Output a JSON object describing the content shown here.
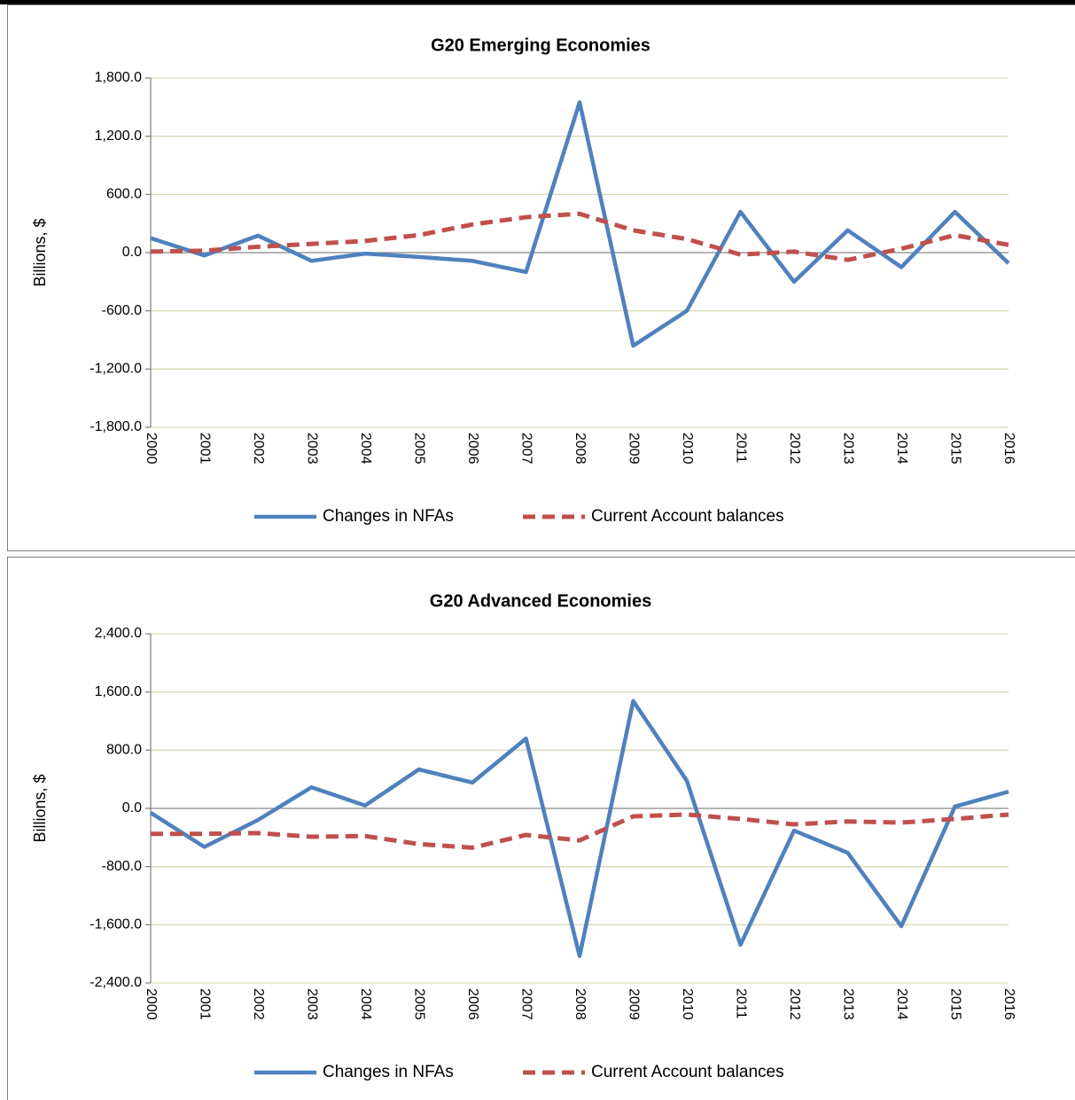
{
  "chart_data": [
    {
      "type": "line",
      "title": "G20 Emerging Economies",
      "y_label": "Billions, $",
      "categories": [
        "2000",
        "2001",
        "2002",
        "2003",
        "2004",
        "2005",
        "2006",
        "2007",
        "2008",
        "2009",
        "2010",
        "2011",
        "2012",
        "2013",
        "2014",
        "2015",
        "2016"
      ],
      "series": [
        {
          "name": "Changes in NFAs",
          "color": "#4f81bd",
          "dash": "solid",
          "values": [
            150,
            -30,
            175,
            -85,
            -10,
            -45,
            -85,
            -200,
            1550,
            -960,
            -600,
            420,
            -300,
            230,
            -150,
            420,
            -110
          ]
        },
        {
          "name": "Current Account balances",
          "color": "#c0504d",
          "dash": "dashed",
          "values": [
            10,
            20,
            60,
            90,
            120,
            180,
            290,
            365,
            400,
            230,
            140,
            -20,
            10,
            -75,
            40,
            180,
            80
          ]
        }
      ],
      "ylim": [
        -1800,
        1800
      ],
      "yticks": [
        {
          "value": -1800,
          "label": "-1,800.0"
        },
        {
          "value": -1200,
          "label": "-1,200.0"
        },
        {
          "value": -600,
          "label": "-600.0"
        },
        {
          "value": 0,
          "label": "0.0"
        },
        {
          "value": 600,
          "label": "600.0"
        },
        {
          "value": 1200,
          "label": "1,200.0"
        },
        {
          "value": 1800,
          "label": "1,800.0"
        }
      ],
      "grid": true,
      "legend": "bottom"
    },
    {
      "type": "line",
      "title": "G20 Advanced Economies",
      "y_label": "Billions, $",
      "categories": [
        "2000",
        "2001",
        "2002",
        "2003",
        "2004",
        "2005",
        "2006",
        "2007",
        "2008",
        "2009",
        "2010",
        "2011",
        "2012",
        "2013",
        "2014",
        "2015",
        "2016"
      ],
      "series": [
        {
          "name": "Changes in NFAs",
          "color": "#4f81bd",
          "dash": "solid",
          "values": [
            -60,
            -530,
            -160,
            290,
            40,
            535,
            355,
            960,
            -2030,
            1475,
            380,
            -1875,
            -305,
            -610,
            -1620,
            25,
            230
          ]
        },
        {
          "name": "Current Account balances",
          "color": "#c0504d",
          "dash": "dashed",
          "values": [
            -350,
            -350,
            -340,
            -390,
            -380,
            -490,
            -540,
            -365,
            -440,
            -110,
            -85,
            -145,
            -220,
            -180,
            -195,
            -145,
            -85
          ]
        }
      ],
      "ylim": [
        -2400,
        2400
      ],
      "yticks": [
        {
          "value": -2400,
          "label": "-2,400.0"
        },
        {
          "value": -1600,
          "label": "-1,600.0"
        },
        {
          "value": -800,
          "label": "-800.0"
        },
        {
          "value": 0,
          "label": "0.0"
        },
        {
          "value": 800,
          "label": "800.0"
        },
        {
          "value": 1600,
          "label": "1,600.0"
        },
        {
          "value": 2400,
          "label": "2,400.0"
        }
      ],
      "grid": true,
      "legend": "bottom"
    }
  ]
}
